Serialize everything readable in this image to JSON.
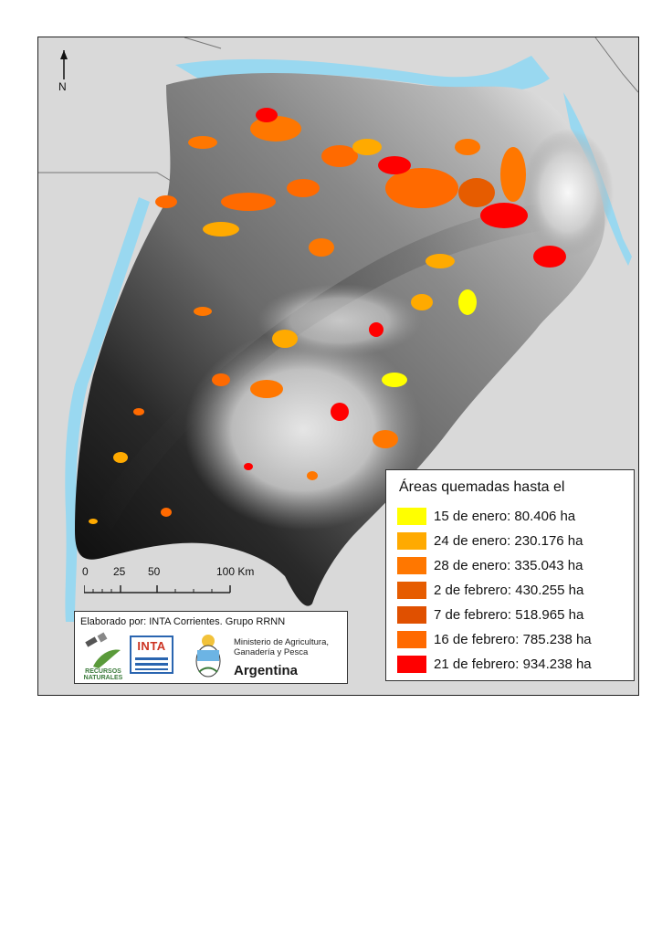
{
  "map": {
    "north_symbol": "N",
    "north_arrow_icon": "north-arrow-icon"
  },
  "legend": {
    "title": "Áreas quemadas hasta el",
    "items": [
      {
        "label": "15 de enero: 80.406 ha",
        "color": "#ffff00"
      },
      {
        "label": "24 de enero: 230.176 ha",
        "color": "#ffaa00"
      },
      {
        "label": "28 de enero: 335.043 ha",
        "color": "#ff7700"
      },
      {
        "label": "2 de febrero: 430.255 ha",
        "color": "#e65c00"
      },
      {
        "label": "7 de febrero: 518.965 ha",
        "color": "#e05000"
      },
      {
        "label": "16 de febrero: 785.238 ha",
        "color": "#ff6a00"
      },
      {
        "label": "21 de febrero: 934.238 ha",
        "color": "#ff0000"
      }
    ]
  },
  "scalebar": {
    "labels": [
      "0",
      "25",
      "50",
      "100 Km"
    ]
  },
  "credits": {
    "elaborado": "Elaborado por: INTA Corrientes. Grupo RRNN",
    "rn_logo_text": "RECURSOS NATURALES",
    "inta_logo_text": "INTA",
    "ministry": "Ministerio de Agricultura, Ganadería y Pesca",
    "country": "Argentina"
  },
  "colors": {
    "water": "#99d8f0",
    "neighbor_land": "#d9d9d9",
    "terrain_dark": "#151515",
    "terrain_light": "#ffffff"
  }
}
